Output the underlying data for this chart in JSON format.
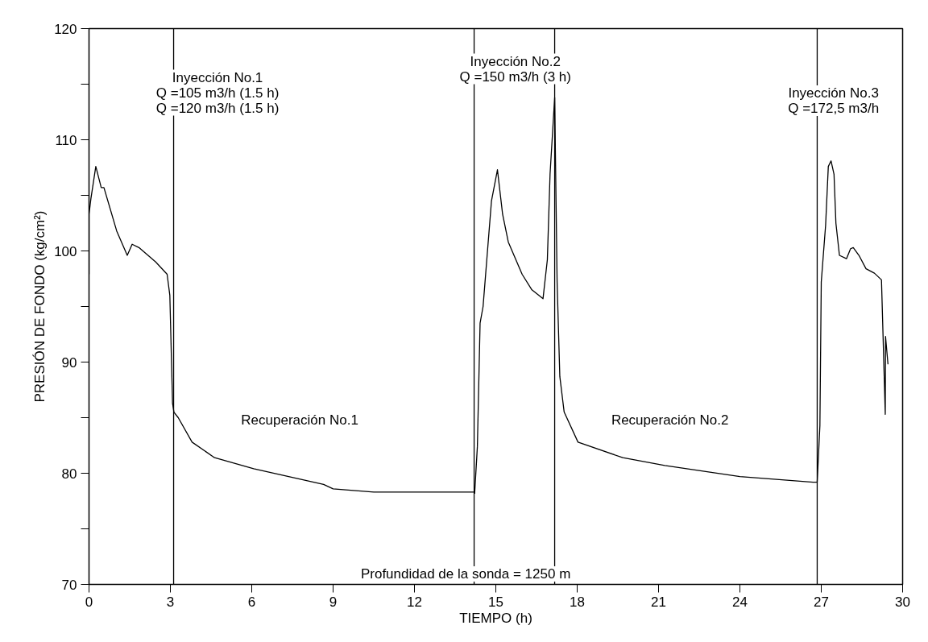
{
  "chart_data": {
    "type": "line",
    "xlabel": "TIEMPO (h)",
    "ylabel": "PRESIÓN DE FONDO (kg/cm²)",
    "xlim": [
      0,
      30
    ],
    "ylim": [
      70,
      120
    ],
    "xticks": [
      0,
      3,
      6,
      9,
      12,
      15,
      18,
      21,
      24,
      27,
      30
    ],
    "yticks": [
      70,
      {
        "value": 75,
        "label": null
      },
      80,
      {
        "value": 85,
        "label": null
      },
      90,
      {
        "value": 95,
        "label": null
      },
      100,
      {
        "value": 105,
        "label": null
      },
      110,
      {
        "value": 115,
        "label": null
      },
      120
    ],
    "grid": false,
    "marker": "none",
    "line_style": "solid",
    "series": [
      {
        "color": "#000000",
        "x": [
          0.0,
          0.0,
          0.07,
          0.25,
          0.45,
          0.55,
          1.02,
          1.41,
          1.59,
          1.84,
          2.46,
          2.88,
          2.98,
          3.08,
          3.13,
          3.29,
          3.8,
          4.63,
          6.07,
          8.65,
          9.0,
          10.5,
          14.2,
          14.22,
          14.32,
          14.42,
          14.53,
          14.68,
          14.84,
          15.06,
          15.25,
          15.46,
          15.97,
          16.33,
          16.74,
          16.9,
          17.0,
          17.17,
          17.26,
          17.36,
          17.52,
          18.03,
          19.68,
          21.23,
          24.0,
          26.7,
          26.85,
          26.95,
          27.0,
          27.16,
          27.26,
          27.36,
          27.47,
          27.54,
          27.67,
          27.93,
          28.08,
          28.18,
          28.39,
          28.65,
          28.96,
          29.22,
          29.36,
          29.37,
          29.46
        ],
        "values": [
          97.9,
          103.3,
          104.7,
          107.6,
          105.7,
          105.7,
          101.8,
          99.6,
          100.6,
          100.3,
          99.0,
          97.9,
          96.0,
          86.3,
          85.5,
          85.0,
          82.8,
          81.4,
          80.4,
          79.0,
          78.6,
          78.3,
          78.3,
          78.2,
          82.4,
          93.5,
          95.0,
          99.6,
          104.5,
          107.3,
          103.3,
          100.8,
          97.9,
          96.5,
          95.7,
          99.2,
          106.9,
          113.8,
          97.2,
          88.7,
          85.5,
          82.8,
          81.4,
          80.7,
          79.7,
          79.2,
          79.2,
          84.3,
          97.2,
          102.3,
          107.6,
          108.1,
          106.9,
          102.5,
          99.6,
          99.3,
          100.2,
          100.3,
          99.6,
          98.4,
          98.0,
          97.4,
          85.3,
          92.3,
          89.8
        ]
      }
    ],
    "ref_lines": [
      {
        "axis": "x",
        "value": 3.12,
        "color": "#000000"
      },
      {
        "axis": "x",
        "value": 14.2,
        "color": "#000000"
      },
      {
        "axis": "x",
        "value": 17.17,
        "color": "#000000"
      },
      {
        "axis": "x",
        "value": 26.85,
        "color": "#000000"
      }
    ],
    "annotations": [
      "Inyección No.1\nQ =105 m3/h (1.5 h)\nQ =120 m3/h (1.5 h)",
      "Inyección No.2\nQ =150 m3/h (3 h)",
      "Inyección No.3\nQ =172,5 m3/h",
      "Recuperación No.1",
      "Recuperación No.2",
      "Profundidad de la sonda = 1250 m"
    ]
  }
}
